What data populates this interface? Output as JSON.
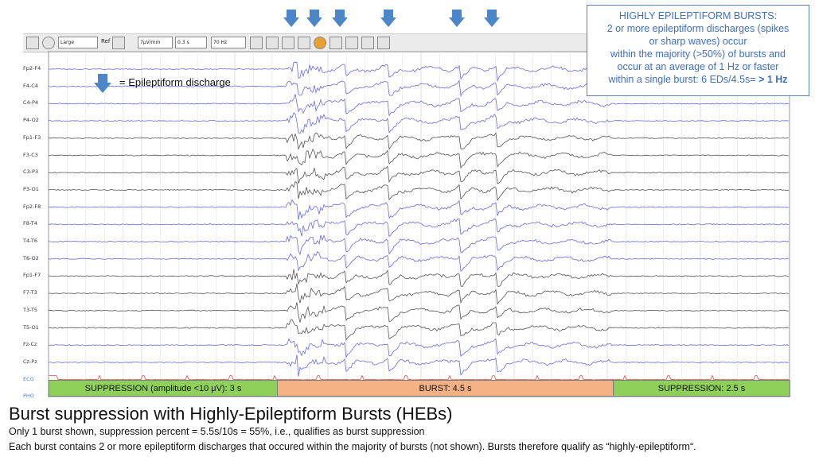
{
  "toolbar": {
    "montage_select": "Large",
    "ref_label": "Ref",
    "sensitivity_select": "7μV/mm",
    "timebase_select": "0.3 s",
    "filter_select": "70 Hz"
  },
  "channels": [
    "Fp2-F4",
    "F4-C4",
    "C4-P4",
    "P4-O2",
    "Fp1-F3",
    "F3-C3",
    "C3-P3",
    "P3-O1",
    "Fp2-F8",
    "F8-T4",
    "T4-T6",
    "T6-O2",
    "Fp1-F7",
    "F7-T3",
    "T3-T5",
    "T5-O1",
    "Fz-Cz",
    "Cz-Pz",
    "ECG",
    "PHO"
  ],
  "info_box": {
    "line1": "HIGHLY EPILEPTIFORM BURSTS:",
    "line2": "2 or more epileptiform discharges (spikes",
    "line3": "or sharp waves) occur",
    "line4": "within the majority (>50%) of bursts and",
    "line5": "occur at an average of 1 Hz or faster",
    "line6_prefix": "within a single burst: 6 EDs/4.5s=",
    "line6_bold": "> 1 Hz"
  },
  "legend": {
    "text": "=   Epileptiform discharge"
  },
  "segments": [
    {
      "label": "SUPPRESSION (amplitude <10 μV): 3 s",
      "color": "#8ed05a"
    },
    {
      "label": "BURST: 4.5 s",
      "color": "#f4b184"
    },
    {
      "label": "SUPPRESSION: 2.5 s",
      "color": "#8ed05a"
    }
  ],
  "caption": {
    "title": "Burst suppression with Highly-Epileptiform Bursts (HEBs)",
    "line1": "Only 1 burst shown, suppression percent = 5.5s/10s = 55%, i.e., qualifies as burst suppression",
    "line2": "Each burst contains 2 or more epileptiform discharges that occured within the majority of bursts (not shown). Bursts therefore qualify as “highly-epileptiform“."
  },
  "colors": {
    "blue_trace": "#6a6ae0",
    "gray_trace": "#555555",
    "ecg_trace": "#d85050",
    "arrow": "#4a86c8",
    "info_text": "#3f6fc0"
  },
  "icons": [
    "down-arrow-icon"
  ]
}
